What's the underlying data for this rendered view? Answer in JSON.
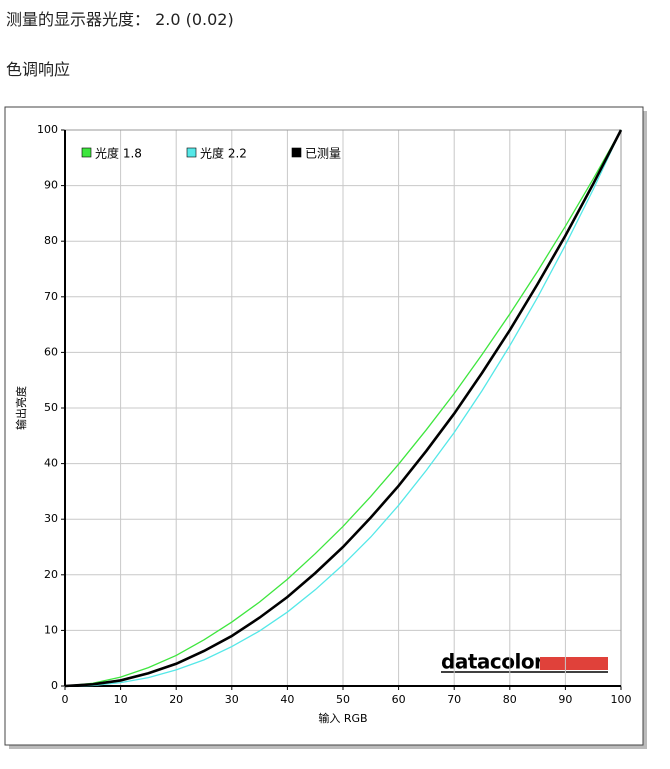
{
  "header": {
    "title": "测量的显示器光度： 2.0 (0.02)",
    "section": "色调响应"
  },
  "chart_data": {
    "type": "line",
    "xlabel": "输入 RGB",
    "ylabel": "输出亮度",
    "logo": "datacolor",
    "x": [
      0,
      5,
      10,
      15,
      20,
      25,
      30,
      35,
      40,
      45,
      50,
      55,
      60,
      65,
      70,
      75,
      80,
      85,
      90,
      95,
      100
    ],
    "series": [
      {
        "name": "光度 1.8",
        "color": "#3ee63e",
        "width": 1.3,
        "values": [
          0,
          0.5,
          1.6,
          3.3,
          5.5,
          8.3,
          11.5,
          15.1,
          19.2,
          23.8,
          28.7,
          34.1,
          39.9,
          46.1,
          52.6,
          59.6,
          66.9,
          74.6,
          82.7,
          91.2,
          100
        ]
      },
      {
        "name": "光度 2.2",
        "color": "#55e8e8",
        "width": 1.3,
        "values": [
          0,
          0.1,
          0.6,
          1.5,
          2.9,
          4.7,
          7.1,
          9.9,
          13.3,
          17.3,
          21.8,
          26.8,
          32.5,
          38.8,
          45.6,
          53.1,
          61.2,
          69.9,
          79.3,
          89.3,
          100
        ]
      },
      {
        "name": "已测量",
        "color": "#000000",
        "width": 2.6,
        "values": [
          0,
          0.3,
          1,
          2.3,
          4,
          6.3,
          9,
          12.3,
          16,
          20.3,
          25,
          30.3,
          36,
          42.3,
          49,
          56.3,
          64,
          72.3,
          81,
          90.3,
          100
        ]
      }
    ],
    "xlim": [
      0,
      100
    ],
    "ylim": [
      0,
      100
    ],
    "xticks": [
      0,
      10,
      20,
      30,
      40,
      50,
      60,
      70,
      80,
      90,
      100
    ],
    "yticks": [
      0,
      10,
      20,
      30,
      40,
      50,
      60,
      70,
      80,
      90,
      100
    ],
    "grid": true,
    "legend": "top-left"
  }
}
